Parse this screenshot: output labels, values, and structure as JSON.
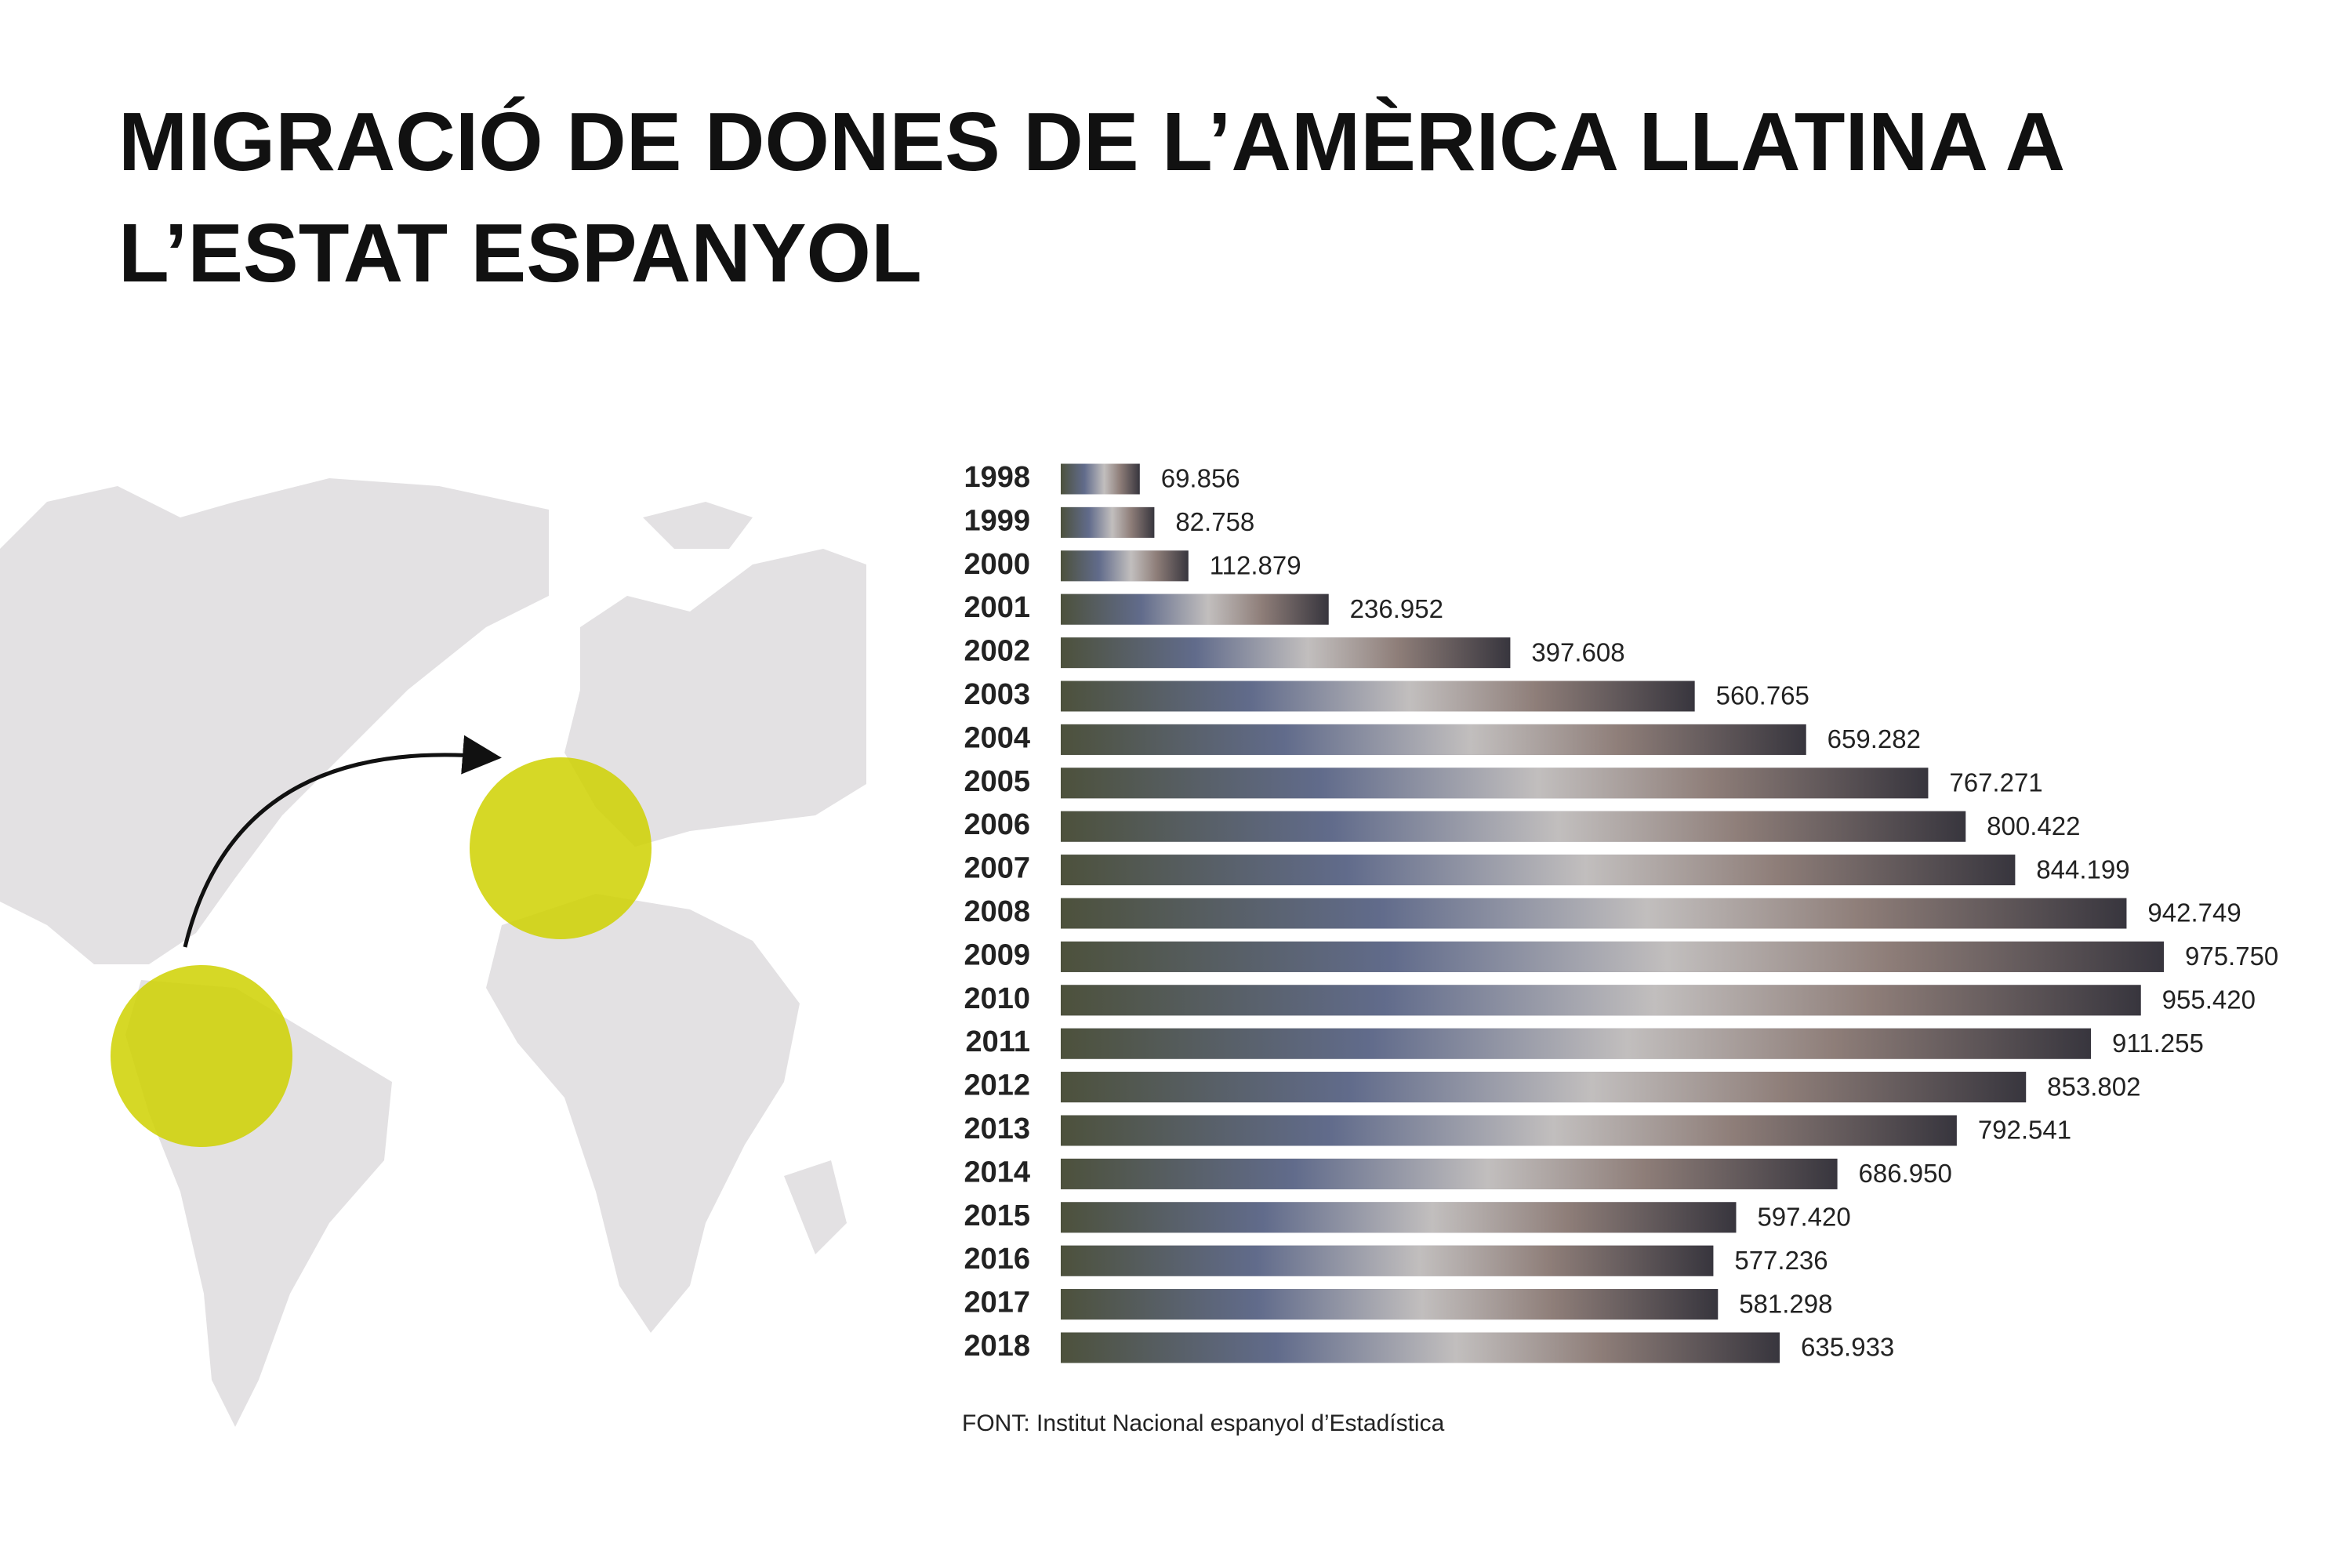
{
  "chart_data": {
    "type": "bar",
    "orientation": "horizontal",
    "title": "MIGRACIÓ DE DONES DE L’AMÈRICA LLATINA A L’ESTAT ESPANYOL",
    "categories": [
      "1998",
      "1999",
      "2000",
      "2001",
      "2002",
      "2003",
      "2004",
      "2005",
      "2006",
      "2007",
      "2008",
      "2009",
      "2010",
      "2011",
      "2012",
      "2013",
      "2014",
      "2015",
      "2016",
      "2017",
      "2018"
    ],
    "values": [
      69856,
      82758,
      112879,
      236952,
      397608,
      560765,
      659282,
      767271,
      800422,
      844199,
      942749,
      975750,
      955420,
      911255,
      853802,
      792541,
      686950,
      597420,
      577236,
      581298,
      635933
    ],
    "value_labels": [
      "69.856",
      "82.758",
      "112.879",
      "236.952",
      "397.608",
      "560.765",
      "659.282",
      "767.271",
      "800.422",
      "844.199",
      "942.749",
      "975.750",
      "955.420",
      "911.255",
      "853.802",
      "792.541",
      "686.950",
      "597.420",
      "577.236",
      "581.298",
      "635.933"
    ],
    "color": "#7d7884",
    "source": "FONT: Institut Nacional espanyol d’Estadística"
  }
}
